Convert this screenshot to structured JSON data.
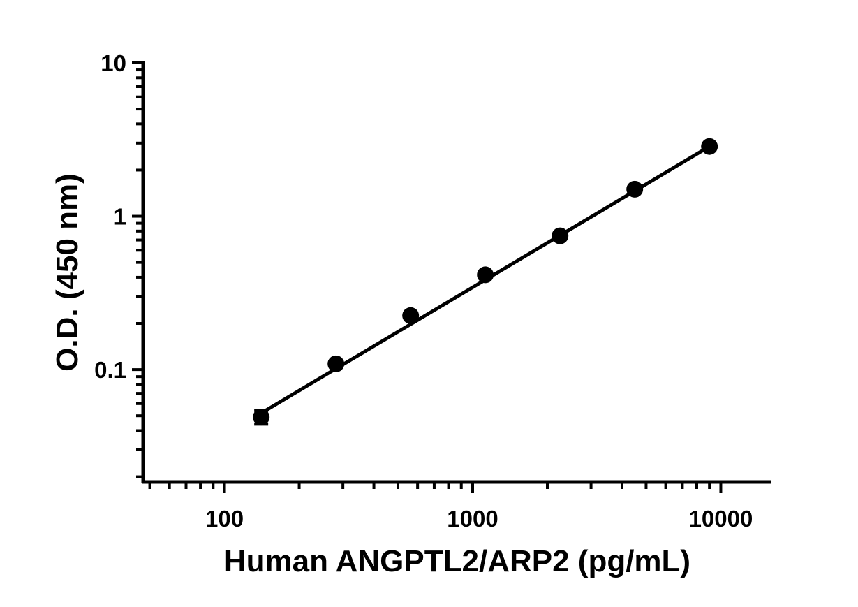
{
  "chart_data": {
    "type": "scatter",
    "xlabel": "Human ANGPTL2/ARP2 (pg/mL)",
    "ylabel": "O.D. (450 nm)",
    "xscale": "log",
    "yscale": "log",
    "xlim": [
      47,
      16000
    ],
    "ylim": [
      0.0185,
      10
    ],
    "x_tick_labels": [
      "100",
      "1000",
      "10000"
    ],
    "y_tick_labels": [
      "0.1",
      "1",
      "10"
    ],
    "grid": false,
    "legend": "none",
    "series": [
      {
        "points": [
          {
            "x": 140.6,
            "y": 0.049,
            "err": 0.005
          },
          {
            "x": 281.3,
            "y": 0.109,
            "err": 0.003
          },
          {
            "x": 562.5,
            "y": 0.225,
            "err": 0.004
          },
          {
            "x": 1125,
            "y": 0.415,
            "err": 0.006
          },
          {
            "x": 2250,
            "y": 0.745,
            "err": 0.008
          },
          {
            "x": 4500,
            "y": 1.5,
            "err": 0.02
          },
          {
            "x": 9000,
            "y": 2.85,
            "err": 0.04
          }
        ],
        "fit": {
          "type": "line",
          "x": [
            140.6,
            9000
          ],
          "y": [
            0.052,
            2.85
          ]
        }
      }
    ],
    "colors": {
      "marker": "#000000",
      "line": "#000000",
      "axis": "#000000"
    }
  }
}
